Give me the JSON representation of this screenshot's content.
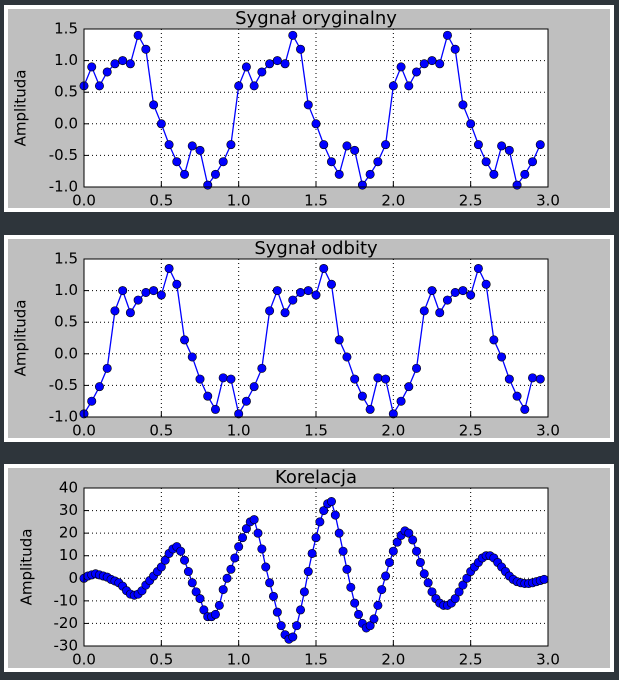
{
  "chart_data": [
    {
      "type": "line",
      "title": "Sygnał oryginalny",
      "ylabel": "Amplituda",
      "color": "#0000ff",
      "grid": true,
      "x": [
        0,
        0.05,
        0.1,
        0.15,
        0.2,
        0.25,
        0.3,
        0.35,
        0.4,
        0.45,
        0.5,
        0.55,
        0.6,
        0.65,
        0.7,
        0.75,
        0.8,
        0.85,
        0.9,
        0.95,
        1,
        1.05,
        1.1,
        1.15,
        1.2,
        1.25,
        1.3,
        1.35,
        1.4,
        1.45,
        1.5,
        1.55,
        1.6,
        1.65,
        1.7,
        1.75,
        1.8,
        1.85,
        1.9,
        1.95,
        2,
        2.05,
        2.1,
        2.15,
        2.2,
        2.25,
        2.3,
        2.35,
        2.4,
        2.45,
        2.5,
        2.55,
        2.6,
        2.65,
        2.7,
        2.75,
        2.8,
        2.85,
        2.9,
        2.95
      ],
      "values": [
        0.6,
        0.9,
        0.6,
        0.82,
        0.95,
        1.0,
        0.95,
        1.4,
        1.18,
        0.3,
        0.0,
        -0.33,
        -0.6,
        -0.8,
        -0.35,
        -0.42,
        -0.97,
        -0.8,
        -0.6,
        -0.33,
        0.6,
        0.9,
        0.6,
        0.82,
        0.95,
        1.0,
        0.95,
        1.4,
        1.18,
        0.3,
        0.0,
        -0.33,
        -0.6,
        -0.8,
        -0.35,
        -0.42,
        -0.97,
        -0.8,
        -0.6,
        -0.33,
        0.6,
        0.9,
        0.6,
        0.82,
        0.95,
        1.0,
        0.95,
        1.4,
        1.18,
        0.3,
        0.0,
        -0.33,
        -0.6,
        -0.8,
        -0.35,
        -0.42,
        -0.97,
        -0.8,
        -0.6,
        -0.33
      ],
      "xlim": [
        0,
        3
      ],
      "ylim": [
        -1,
        1.5
      ],
      "xticks": [
        {
          "value": 0,
          "label": "0.0"
        },
        {
          "value": 0.5,
          "label": "0.5"
        },
        {
          "value": 1,
          "label": "1.0"
        },
        {
          "value": 1.5,
          "label": "1.5"
        },
        {
          "value": 2,
          "label": "2.0"
        },
        {
          "value": 2.5,
          "label": "2.5"
        },
        {
          "value": 3,
          "label": "3.0"
        }
      ],
      "yticks": [
        {
          "value": -1,
          "label": "-1.0"
        },
        {
          "value": -0.5,
          "label": "-0.5"
        },
        {
          "value": 0,
          "label": "0.0"
        },
        {
          "value": 0.5,
          "label": "0.5"
        },
        {
          "value": 1,
          "label": "1.0"
        },
        {
          "value": 1.5,
          "label": "1.5"
        }
      ]
    },
    {
      "type": "line",
      "title": "Sygnał odbity",
      "ylabel": "Amplituda",
      "color": "#0000ff",
      "grid": true,
      "x": [
        0,
        0.05,
        0.1,
        0.15,
        0.2,
        0.25,
        0.3,
        0.35,
        0.4,
        0.45,
        0.5,
        0.55,
        0.6,
        0.65,
        0.7,
        0.75,
        0.8,
        0.85,
        0.9,
        0.95,
        1,
        1.05,
        1.1,
        1.15,
        1.2,
        1.25,
        1.3,
        1.35,
        1.4,
        1.45,
        1.5,
        1.55,
        1.6,
        1.65,
        1.7,
        1.75,
        1.8,
        1.85,
        1.9,
        1.95,
        2,
        2.05,
        2.1,
        2.15,
        2.2,
        2.25,
        2.3,
        2.35,
        2.4,
        2.45,
        2.5,
        2.55,
        2.6,
        2.65,
        2.7,
        2.75,
        2.8,
        2.85,
        2.9,
        2.95
      ],
      "values": [
        -0.95,
        -0.75,
        -0.52,
        -0.23,
        0.68,
        1.0,
        0.65,
        0.85,
        0.97,
        1.0,
        0.93,
        1.35,
        1.1,
        0.22,
        -0.05,
        -0.4,
        -0.67,
        -0.88,
        -0.38,
        -0.4,
        -0.95,
        -0.75,
        -0.52,
        -0.23,
        0.68,
        1.0,
        0.65,
        0.85,
        0.97,
        1.0,
        0.93,
        1.35,
        1.1,
        0.22,
        -0.05,
        -0.4,
        -0.67,
        -0.88,
        -0.38,
        -0.4,
        -0.95,
        -0.75,
        -0.52,
        -0.23,
        0.68,
        1.0,
        0.65,
        0.85,
        0.97,
        1.0,
        0.93,
        1.35,
        1.1,
        0.22,
        -0.05,
        -0.4,
        -0.67,
        -0.88,
        -0.38,
        -0.4
      ],
      "xlim": [
        0,
        3
      ],
      "ylim": [
        -1,
        1.5
      ],
      "xticks": [
        {
          "value": 0,
          "label": "0.0"
        },
        {
          "value": 0.5,
          "label": "0.5"
        },
        {
          "value": 1,
          "label": "1.0"
        },
        {
          "value": 1.5,
          "label": "1.5"
        },
        {
          "value": 2,
          "label": "2.0"
        },
        {
          "value": 2.5,
          "label": "2.5"
        },
        {
          "value": 3,
          "label": "3.0"
        }
      ],
      "yticks": [
        {
          "value": -1,
          "label": "-1.0"
        },
        {
          "value": -0.5,
          "label": "-0.5"
        },
        {
          "value": 0,
          "label": "0.0"
        },
        {
          "value": 0.5,
          "label": "0.5"
        },
        {
          "value": 1,
          "label": "1.0"
        },
        {
          "value": 1.5,
          "label": "1.5"
        }
      ]
    },
    {
      "type": "line",
      "title": "Korelacja",
      "ylabel": "Amplituda",
      "color": "#0000ff",
      "grid": true,
      "x": [
        0,
        0.025,
        0.05,
        0.075,
        0.1,
        0.125,
        0.15,
        0.175,
        0.2,
        0.225,
        0.25,
        0.275,
        0.3,
        0.325,
        0.35,
        0.375,
        0.4,
        0.425,
        0.45,
        0.475,
        0.5,
        0.525,
        0.55,
        0.575,
        0.6,
        0.625,
        0.65,
        0.675,
        0.7,
        0.725,
        0.75,
        0.775,
        0.8,
        0.825,
        0.85,
        0.875,
        0.9,
        0.925,
        0.95,
        0.975,
        1,
        1.025,
        1.05,
        1.075,
        1.1,
        1.125,
        1.15,
        1.175,
        1.2,
        1.225,
        1.25,
        1.275,
        1.3,
        1.325,
        1.35,
        1.375,
        1.4,
        1.425,
        1.45,
        1.475,
        1.5,
        1.525,
        1.55,
        1.575,
        1.6,
        1.625,
        1.65,
        1.675,
        1.7,
        1.725,
        1.75,
        1.775,
        1.8,
        1.825,
        1.85,
        1.875,
        1.9,
        1.925,
        1.95,
        1.975,
        2,
        2.025,
        2.05,
        2.075,
        2.1,
        2.125,
        2.15,
        2.175,
        2.2,
        2.225,
        2.25,
        2.275,
        2.3,
        2.325,
        2.35,
        2.375,
        2.4,
        2.425,
        2.45,
        2.475,
        2.5,
        2.525,
        2.55,
        2.575,
        2.6,
        2.625,
        2.65,
        2.675,
        2.7,
        2.725,
        2.75,
        2.775,
        2.8,
        2.825,
        2.85,
        2.875,
        2.9,
        2.925,
        2.95,
        2.975
      ],
      "values": [
        0,
        1,
        1.5,
        2,
        1.5,
        1,
        0.5,
        -0.5,
        -1.2,
        -2,
        -3.5,
        -5.5,
        -7,
        -7.5,
        -7,
        -5.5,
        -3,
        -1,
        1,
        3,
        5,
        8,
        11,
        13,
        14,
        12,
        8,
        3,
        -2,
        -6,
        -9,
        -14,
        -17,
        -17,
        -16,
        -12,
        -5,
        0,
        4,
        9,
        14,
        18,
        22,
        25,
        26,
        20,
        13,
        5,
        -2,
        -8,
        -15,
        -21,
        -25,
        -27,
        -26,
        -21,
        -14,
        -6,
        3,
        11,
        18,
        25,
        30,
        33,
        34,
        28,
        20,
        12,
        4,
        -4,
        -11,
        -16,
        -20,
        -22,
        -21,
        -18,
        -12,
        -5,
        1,
        7,
        12,
        16,
        19,
        21,
        20,
        17,
        12,
        7,
        2,
        -2,
        -6,
        -9,
        -11,
        -12,
        -12,
        -11,
        -9,
        -6,
        -3,
        0,
        3,
        5,
        7,
        9,
        10,
        10,
        9,
        7,
        5,
        3,
        1,
        -0.5,
        -1.5,
        -2,
        -2.3,
        -2.3,
        -2,
        -1.5,
        -1,
        -0.5
      ],
      "xlim": [
        0,
        3
      ],
      "ylim": [
        -30,
        40
      ],
      "xticks": [
        {
          "value": 0,
          "label": "0.0"
        },
        {
          "value": 0.5,
          "label": "0.5"
        },
        {
          "value": 1,
          "label": "1.0"
        },
        {
          "value": 1.5,
          "label": "1.5"
        },
        {
          "value": 2,
          "label": "2.0"
        },
        {
          "value": 2.5,
          "label": "2.5"
        },
        {
          "value": 3,
          "label": "3.0"
        }
      ],
      "yticks": [
        -30,
        -20,
        -10,
        0,
        10,
        20,
        30,
        40
      ]
    }
  ]
}
